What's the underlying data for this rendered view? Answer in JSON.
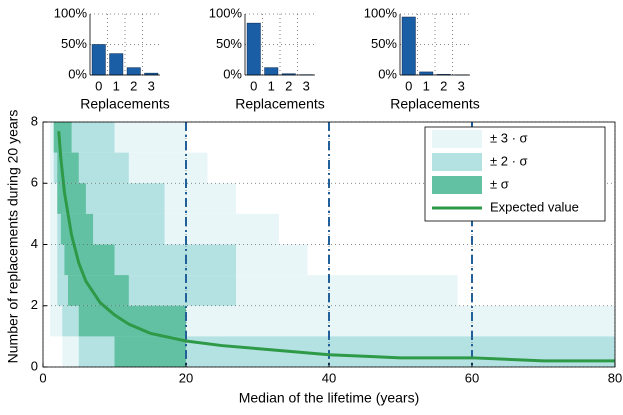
{
  "chart_data": [
    {
      "type": "step-band",
      "xlabel": "Median of the lifetime (years)",
      "ylabel": "Number of replacements during 20 years",
      "xlim": [
        0,
        80
      ],
      "ylim": [
        0,
        8
      ],
      "xticks": [
        0,
        20,
        40,
        60,
        80
      ],
      "yticks": [
        0,
        2,
        4,
        6,
        8
      ],
      "grid": true,
      "legend": "upper right",
      "levels": [
        0,
        1,
        2,
        3,
        4,
        5,
        6,
        7
      ],
      "bands": [
        {
          "name": "± 3 · σ",
          "color": "#e9f6f8",
          "x_start": [
            2.7,
            1,
            1,
            1,
            1,
            1,
            1,
            1
          ],
          "x_end": [
            80,
            80,
            58,
            37,
            33,
            27,
            23,
            20
          ]
        },
        {
          "name": "± 2 · σ",
          "color": "#b4e2e2",
          "x_start": [
            5,
            2.7,
            2,
            2,
            2,
            2,
            1.5,
            1.5
          ],
          "x_end": [
            80,
            20,
            27,
            27,
            17,
            17,
            12,
            10
          ]
        },
        {
          "name": "± σ",
          "color": "#62c1a2",
          "x_start": [
            10,
            5,
            3.5,
            3,
            2.5,
            2,
            2,
            1.5
          ],
          "x_end": [
            20,
            20,
            12,
            10,
            7,
            6,
            5,
            4
          ]
        }
      ],
      "series": [
        {
          "name": "Expected value",
          "color": "#2e9a48",
          "x": [
            2.2,
            2.5,
            3,
            4,
            5,
            6,
            8,
            10,
            12,
            15,
            20,
            25,
            30,
            40,
            50,
            60,
            70,
            80
          ],
          "values": [
            7.7,
            6.8,
            5.7,
            4.3,
            3.4,
            2.8,
            2.1,
            1.7,
            1.4,
            1.1,
            0.85,
            0.7,
            0.6,
            0.4,
            0.3,
            0.3,
            0.2,
            0.2
          ]
        }
      ],
      "reference_lines": {
        "x": [
          20,
          40,
          60
        ],
        "color": "#1a5fa0"
      }
    },
    {
      "type": "bar",
      "xlabel": "Replacements",
      "categories": [
        "0",
        "1",
        "2",
        "3"
      ],
      "values": [
        50,
        35,
        12,
        3
      ],
      "color": "#1a5fa6",
      "ylim": [
        0,
        100
      ],
      "yticks": [
        {
          "value": 0,
          "label": "0%"
        },
        {
          "value": 50,
          "label": "50%"
        },
        {
          "value": 100,
          "label": "100%"
        }
      ],
      "grid": true
    },
    {
      "type": "bar",
      "xlabel": "Replacements",
      "categories": [
        "0",
        "1",
        "2",
        "3"
      ],
      "values": [
        85,
        12,
        2,
        0.5
      ],
      "color": "#1a5fa6",
      "ylim": [
        0,
        100
      ],
      "yticks": [
        {
          "value": 0,
          "label": "0%"
        },
        {
          "value": 50,
          "label": "50%"
        },
        {
          "value": 100,
          "label": "100%"
        }
      ],
      "grid": true
    },
    {
      "type": "bar",
      "xlabel": "Replacements",
      "categories": [
        "0",
        "1",
        "2",
        "3"
      ],
      "values": [
        95,
        5,
        1,
        0.3
      ],
      "color": "#1a5fa6",
      "ylim": [
        0,
        100
      ],
      "yticks": [
        {
          "value": 0,
          "label": "0%"
        },
        {
          "value": 50,
          "label": "50%"
        },
        {
          "value": 100,
          "label": "100%"
        }
      ],
      "grid": true
    }
  ]
}
